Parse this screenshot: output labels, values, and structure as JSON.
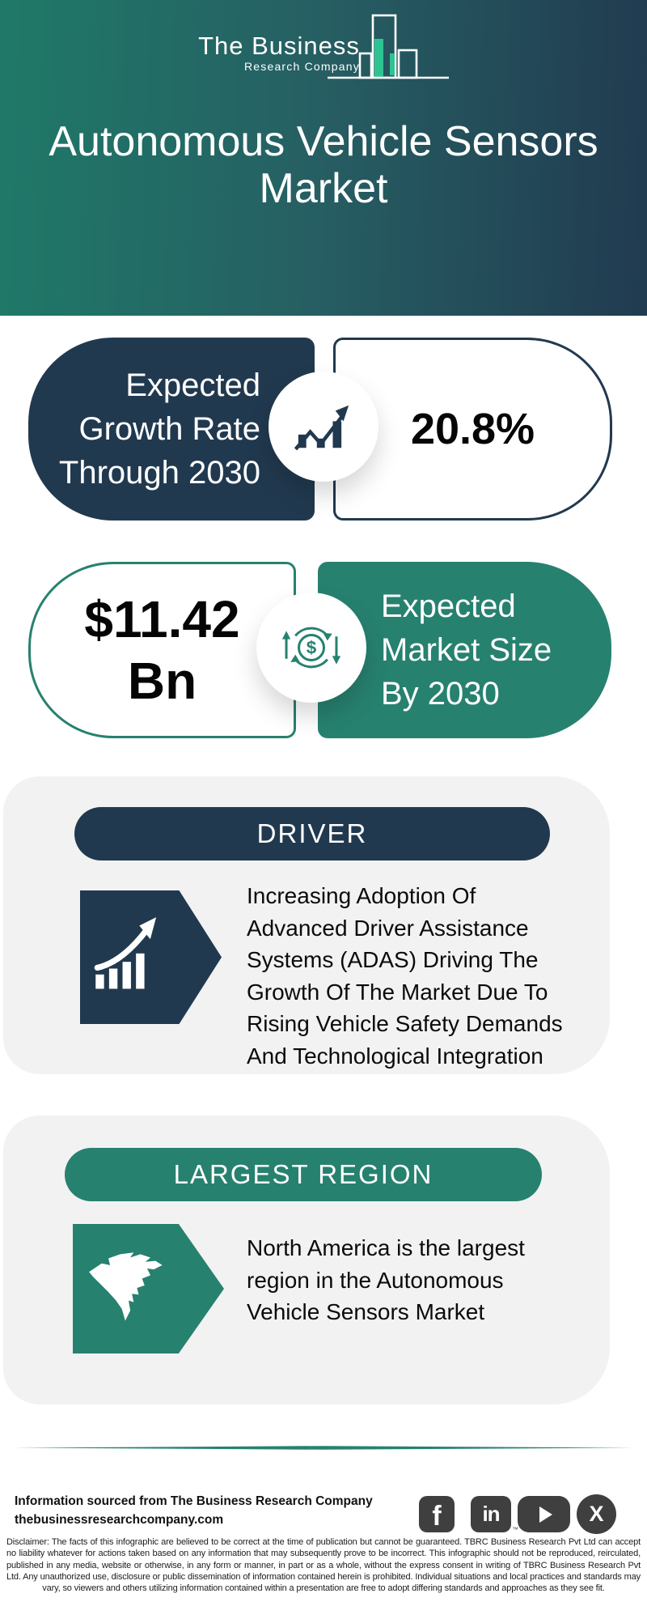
{
  "colors": {
    "teal": "#27816F",
    "navy": "#21394F",
    "header_gradient_left": "#1F7968",
    "header_gradient_right": "#213B50",
    "card_bg": "#F2F2F2",
    "social_gray": "#3F3F3F",
    "logo_green": "#2EC492"
  },
  "header": {
    "logo": {
      "line1": "The Business",
      "line2": "Research Company",
      "icon": "bar-chart-logo-icon"
    },
    "title_lines": [
      "Autonomous Vehicle Sensors",
      "Market"
    ]
  },
  "stats": [
    {
      "label_lines": [
        "Expected",
        "Growth Rate",
        "Through 2030"
      ],
      "value": "20.8%",
      "icon": "growth-chart-icon"
    },
    {
      "value_line1": "$11.42",
      "value_line2": "Bn",
      "label_lines": [
        "Expected",
        "Market Size",
        "By 2030"
      ],
      "icon": "money-cycle-icon"
    }
  ],
  "driver": {
    "heading": "DRIVER",
    "icon": "growth-arrow-badge-icon",
    "lines": [
      "Increasing Adoption Of",
      "Advanced Driver Assistance",
      "Systems (ADAS) Driving The",
      "Growth Of The Market Due To",
      "Rising Vehicle Safety Demands",
      "And Technological Integration"
    ]
  },
  "largest_region": {
    "heading": "LARGEST REGION",
    "icon": "north-america-map-icon",
    "lines": [
      "North America is the largest",
      "region in the Autonomous",
      "Vehicle Sensors Market"
    ]
  },
  "footer": {
    "source_line1": "Information sourced from The Business Research Company",
    "source_line2": "thebusinessresearchcompany.com",
    "social": [
      {
        "name": "facebook",
        "glyph": "f"
      },
      {
        "name": "linkedin",
        "glyph": "in",
        "tm": "™"
      },
      {
        "name": "youtube",
        "glyph": ""
      },
      {
        "name": "x-twitter",
        "glyph": "X"
      }
    ]
  },
  "disclaimer": "Disclaimer: The facts of this infographic are believed to be correct at the time of publication but cannot be guaranteed. TBRC Business Research Pvt Ltd can accept no liability whatever for actions taken based on any information that may subsequently prove to be incorrect. This infographic should not be reproduced, reirculated, published in any media, website or otherwise, in any form or manner, in part or as a whole, without the express consent in writing of TBRC Business Research Pvt Ltd. Any unauthorized use, disclosure or public dissemination of information contained herein is prohibited. Individual situations and local practices and standards may vary, so viewers and others utilizing information contained within a presentation are free to adopt differing standards and approaches as they see fit."
}
